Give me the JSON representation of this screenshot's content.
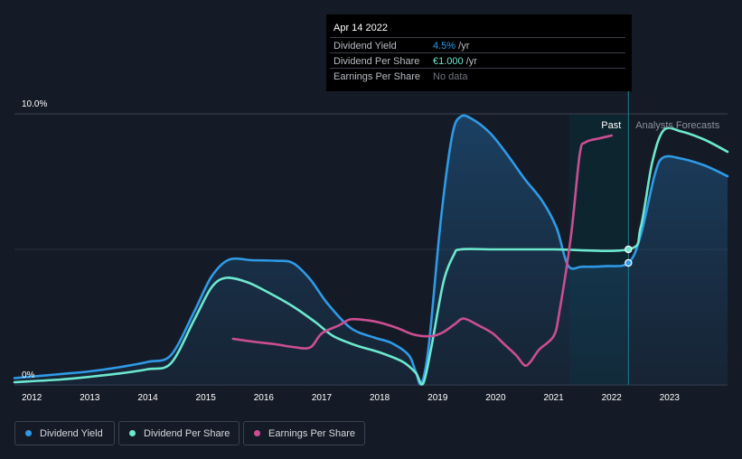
{
  "tooltip": {
    "date": "Apr 14 2022",
    "rows": [
      {
        "label": "Dividend Yield",
        "value": "4.5%",
        "unit": " /yr",
        "color": "#2f9ae6"
      },
      {
        "label": "Dividend Per Share",
        "value": "€1.000",
        "unit": " /yr",
        "color": "#6de8cf"
      },
      {
        "label": "Earnings Per Share",
        "value": "No data",
        "unit": "",
        "color": "#6f7580"
      }
    ]
  },
  "legend": [
    {
      "label": "Dividend Yield",
      "color": "#2f9ae6"
    },
    {
      "label": "Dividend Per Share",
      "color": "#6de8cf"
    },
    {
      "label": "Earnings Per Share",
      "color": "#cc4e92"
    }
  ],
  "chart_data": {
    "type": "line",
    "y_ticks": [
      "10.0%",
      "0%"
    ],
    "ylim": [
      0,
      10
    ],
    "x_ticks": [
      "2012",
      "2013",
      "2014",
      "2015",
      "2016",
      "2017",
      "2018",
      "2019",
      "2020",
      "2021",
      "2022",
      "2023"
    ],
    "xlim": [
      2011.7,
      2024.0
    ],
    "past_label": "Past",
    "forecast_label": "Analysts Forecasts",
    "past_band": [
      2021.27,
      2022.29
    ],
    "marker_x": 2022.29,
    "series": [
      {
        "name": "Dividend Yield",
        "color": "#2f9ae6",
        "fill": true,
        "points": [
          [
            2011.7,
            0.25
          ],
          [
            2012.5,
            0.4
          ],
          [
            2013.0,
            0.5
          ],
          [
            2013.5,
            0.65
          ],
          [
            2014.0,
            0.85
          ],
          [
            2014.4,
            1.1
          ],
          [
            2014.8,
            2.7
          ],
          [
            2015.1,
            4.0
          ],
          [
            2015.4,
            4.62
          ],
          [
            2015.8,
            4.6
          ],
          [
            2016.2,
            4.58
          ],
          [
            2016.5,
            4.5
          ],
          [
            2016.8,
            3.9
          ],
          [
            2017.1,
            3.0
          ],
          [
            2017.5,
            2.1
          ],
          [
            2017.9,
            1.75
          ],
          [
            2018.2,
            1.55
          ],
          [
            2018.5,
            1.1
          ],
          [
            2018.62,
            0.5
          ],
          [
            2018.72,
            0.05
          ],
          [
            2018.85,
            1.5
          ],
          [
            2019.05,
            6.0
          ],
          [
            2019.25,
            9.2
          ],
          [
            2019.4,
            9.9
          ],
          [
            2019.6,
            9.8
          ],
          [
            2019.9,
            9.3
          ],
          [
            2020.2,
            8.5
          ],
          [
            2020.5,
            7.6
          ],
          [
            2020.8,
            6.8
          ],
          [
            2021.05,
            5.8
          ],
          [
            2021.25,
            4.4
          ],
          [
            2021.5,
            4.36
          ],
          [
            2021.9,
            4.38
          ],
          [
            2022.29,
            4.5
          ],
          [
            2022.5,
            5.5
          ],
          [
            2022.75,
            7.8
          ],
          [
            2022.9,
            8.4
          ],
          [
            2023.2,
            8.35
          ],
          [
            2023.6,
            8.1
          ],
          [
            2024.0,
            7.7
          ]
        ]
      },
      {
        "name": "Dividend Per Share",
        "color": "#6de8cf",
        "fill": false,
        "points": [
          [
            2011.7,
            0.1
          ],
          [
            2012.5,
            0.2
          ],
          [
            2013.0,
            0.3
          ],
          [
            2013.5,
            0.42
          ],
          [
            2014.0,
            0.58
          ],
          [
            2014.4,
            0.8
          ],
          [
            2014.8,
            2.4
          ],
          [
            2015.1,
            3.6
          ],
          [
            2015.35,
            3.95
          ],
          [
            2015.7,
            3.8
          ],
          [
            2016.0,
            3.5
          ],
          [
            2016.5,
            2.9
          ],
          [
            2016.9,
            2.3
          ],
          [
            2017.2,
            1.8
          ],
          [
            2017.6,
            1.45
          ],
          [
            2018.0,
            1.2
          ],
          [
            2018.4,
            0.85
          ],
          [
            2018.62,
            0.45
          ],
          [
            2018.75,
            0.05
          ],
          [
            2018.9,
            1.5
          ],
          [
            2019.1,
            3.8
          ],
          [
            2019.28,
            4.8
          ],
          [
            2019.4,
            5.0
          ],
          [
            2020.0,
            5.0
          ],
          [
            2021.0,
            5.0
          ],
          [
            2022.29,
            5.0
          ],
          [
            2022.5,
            5.8
          ],
          [
            2022.7,
            8.2
          ],
          [
            2022.9,
            9.4
          ],
          [
            2023.2,
            9.35
          ],
          [
            2023.6,
            9.05
          ],
          [
            2024.0,
            8.6
          ]
        ]
      },
      {
        "name": "Earnings Per Share",
        "color": "#cc4e92",
        "fill": false,
        "points": [
          [
            2015.47,
            1.7
          ],
          [
            2015.8,
            1.6
          ],
          [
            2016.2,
            1.5
          ],
          [
            2016.5,
            1.4
          ],
          [
            2016.8,
            1.38
          ],
          [
            2017.0,
            1.9
          ],
          [
            2017.3,
            2.2
          ],
          [
            2017.5,
            2.42
          ],
          [
            2017.8,
            2.38
          ],
          [
            2018.0,
            2.3
          ],
          [
            2018.3,
            2.1
          ],
          [
            2018.6,
            1.85
          ],
          [
            2018.9,
            1.8
          ],
          [
            2019.1,
            1.95
          ],
          [
            2019.3,
            2.25
          ],
          [
            2019.45,
            2.45
          ],
          [
            2019.7,
            2.2
          ],
          [
            2019.95,
            1.9
          ],
          [
            2020.15,
            1.5
          ],
          [
            2020.35,
            1.1
          ],
          [
            2020.5,
            0.72
          ],
          [
            2020.6,
            0.85
          ],
          [
            2020.75,
            1.3
          ],
          [
            2021.0,
            1.8
          ],
          [
            2021.1,
            2.7
          ],
          [
            2021.3,
            5.5
          ],
          [
            2021.45,
            8.5
          ],
          [
            2021.55,
            8.95
          ],
          [
            2021.8,
            9.1
          ],
          [
            2022.0,
            9.2
          ]
        ]
      }
    ]
  }
}
